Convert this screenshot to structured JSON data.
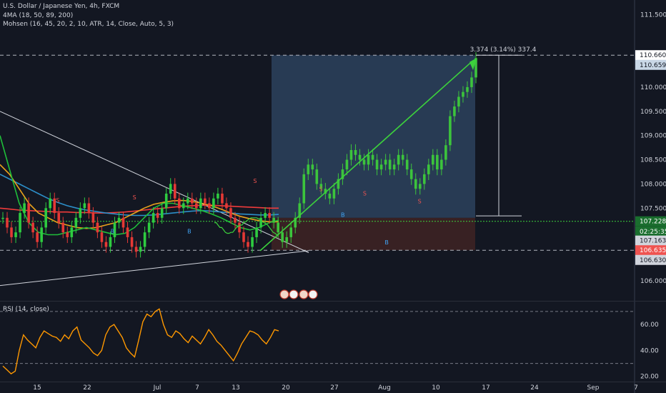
{
  "legend": {
    "title": "U.S. Dollar / Japanese Yen, 4h, FXCM",
    "ma": "4MA (18, 50, 89, 200)",
    "mohsen": "Mohsen (16, 45, 20, 2, 10, ATR, 14, Close, Auto, 5, 3)",
    "rsi": "RSI (14, close)"
  },
  "measure_label": "3.374 (3.14%) 337.4",
  "colors": {
    "bg": "#131722",
    "up": "#26a69a",
    "green": "#3cd23c",
    "red": "#ef5350",
    "rsi": "#ff9800",
    "target_zone": "#2b3f5a",
    "stop_zone": "#3a2224"
  },
  "chart_data": {
    "type": "candlestick",
    "price_axis": {
      "ticks": [
        "111.500",
        "110.660",
        "110.659",
        "110.000",
        "109.500",
        "109.000",
        "108.500",
        "108.000",
        "107.500",
        "107.228",
        "02:25:35",
        "107.163",
        "106.635",
        "106.630",
        "106.000"
      ],
      "ylim": [
        105.6,
        111.8
      ]
    },
    "x_ticks": [
      "15",
      "22",
      "Jul",
      "7",
      "13",
      "20",
      "27",
      "Aug",
      "10",
      "17",
      "24",
      "Sep",
      "7"
    ],
    "price_tags": [
      {
        "value": "110.660",
        "bg": "#ffffff",
        "fg": "#131722"
      },
      {
        "value": "110.659",
        "bg": "#c9d7e6",
        "fg": "#131722"
      },
      {
        "value": "107.228",
        "bg": "#1a6e2e",
        "fg": "#ffffff"
      },
      {
        "value": "02:25:35",
        "bg": "#1a6e2e",
        "fg": "#ffffff"
      },
      {
        "value": "107.163",
        "bg": "#d1d4dc",
        "fg": "#131722"
      },
      {
        "value": "106.635",
        "bg": "#ef5350",
        "fg": "#ffffff"
      },
      {
        "value": "106.630",
        "bg": "#d1d4dc",
        "fg": "#131722"
      }
    ],
    "rsi_axis": {
      "ticks": [
        "60.00",
        "40.00",
        "20.00"
      ],
      "ylim": [
        16,
        76
      ],
      "overbought": 70,
      "oversold": 30
    },
    "price_series": [
      107.3,
      107.1,
      106.9,
      107.0,
      107.4,
      107.6,
      107.2,
      107.0,
      106.8,
      107.1,
      107.5,
      107.7,
      107.4,
      107.2,
      107.0,
      106.9,
      107.1,
      107.3,
      107.5,
      107.6,
      107.4,
      107.2,
      107.0,
      106.8,
      106.7,
      106.9,
      107.2,
      107.3,
      107.1,
      106.9,
      106.7,
      106.6,
      106.7,
      107.0,
      107.2,
      107.4,
      107.3,
      107.5,
      107.8,
      108.0,
      107.7,
      107.5,
      107.6,
      107.7,
      107.6,
      107.5,
      107.7,
      107.6,
      107.5,
      107.7,
      107.8,
      107.6,
      107.5,
      107.3,
      107.2,
      107.0,
      106.8,
      106.7,
      106.9,
      107.1,
      107.3,
      107.4,
      107.3,
      107.2,
      107.0,
      106.8,
      106.9,
      107.1,
      107.3,
      107.6,
      108.2,
      108.4,
      108.3,
      108.0,
      107.9,
      107.8,
      107.7,
      107.9,
      108.1,
      108.3,
      108.5,
      108.7,
      108.6,
      108.5,
      108.4,
      108.6,
      108.5,
      108.3,
      108.4,
      108.5,
      108.3,
      108.4,
      108.6,
      108.5,
      108.3,
      108.1,
      107.9,
      108.0,
      108.2,
      108.4,
      108.6,
      108.3,
      108.5,
      108.8,
      109.4,
      109.6,
      109.8,
      109.9,
      110.0,
      110.2,
      110.6
    ],
    "stop_series": [
      107.2,
      107.2,
      107.15,
      107.1,
      107.1,
      107.05,
      107.0,
      106.98,
      106.98,
      107.0,
      107.0,
      107.05,
      107.1,
      107.12,
      107.15,
      107.15,
      107.2,
      107.22,
      107.25,
      107.28,
      107.3,
      107.3,
      107.3,
      107.3,
      107.28,
      107.26,
      107.22,
      107.2,
      107.18,
      107.15,
      107.1,
      107.05,
      107.0,
      106.98,
      106.95,
      106.95
    ],
    "ma_series": [
      {
        "color": "#ef3b3b",
        "values": [
          107.5,
          107.48,
          107.46,
          107.45,
          107.44,
          107.43,
          107.42,
          107.42,
          107.41,
          107.41,
          107.4,
          107.4,
          107.41,
          107.42,
          107.44,
          107.46,
          107.48,
          107.5,
          107.52,
          107.54,
          107.55,
          107.56,
          107.56,
          107.55,
          107.54,
          107.53,
          107.52,
          107.51,
          107.5,
          107.5
        ]
      },
      {
        "color": "#2c8fc9",
        "values": [
          108.2,
          108.1,
          108.0,
          107.9,
          107.8,
          107.7,
          107.62,
          107.55,
          107.5,
          107.46,
          107.43,
          107.4,
          107.38,
          107.36,
          107.35,
          107.35,
          107.36,
          107.38,
          107.4,
          107.42,
          107.44,
          107.45,
          107.44,
          107.42,
          107.4,
          107.38,
          107.37,
          107.36,
          107.36,
          107.37
        ]
      },
      {
        "color": "#e9a21c",
        "values": [
          108.4,
          108.2,
          107.9,
          107.6,
          107.4,
          107.3,
          107.2,
          107.15,
          107.1,
          107.08,
          107.1,
          107.15,
          107.2,
          107.3,
          107.4,
          107.5,
          107.58,
          107.62,
          107.65,
          107.66,
          107.64,
          107.6,
          107.55,
          107.48,
          107.4,
          107.33,
          107.28,
          107.24,
          107.22,
          107.22
        ]
      },
      {
        "color": "#1fbf3a",
        "values": [
          109.0,
          108.3,
          107.6,
          107.2,
          107.0,
          106.95,
          106.95,
          107.0,
          107.05,
          107.1,
          107.05,
          107.0,
          106.95,
          106.98,
          107.1,
          107.3,
          107.5,
          107.6,
          107.6,
          107.55,
          107.5,
          107.45,
          107.38,
          107.3,
          107.2,
          107.1,
          107.05,
          107.1,
          107.2,
          107.25
        ]
      }
    ],
    "markers": [
      {
        "text": "S",
        "i": 5,
        "price": 107.62
      },
      {
        "text": "B",
        "i": 10,
        "price": 106.98
      },
      {
        "text": "S",
        "i": 12,
        "price": 107.68
      },
      {
        "text": "B",
        "i": 17,
        "price": 106.98
      },
      {
        "text": "S",
        "i": 23,
        "price": 108.02
      },
      {
        "text": "S",
        "i": 29,
        "price": 107.85
      },
      {
        "text": "B",
        "i": 31,
        "price": 107.32
      },
      {
        "text": "S",
        "i": 33,
        "price": 107.76
      },
      {
        "text": "B",
        "i": 35,
        "price": 106.75
      },
      {
        "text": "S",
        "i": 38,
        "price": 107.6
      }
    ],
    "rsi": [
      28,
      25,
      22,
      24,
      40,
      52,
      48,
      45,
      42,
      50,
      55,
      53,
      51,
      50,
      47,
      52,
      49,
      55,
      58,
      48,
      45,
      42,
      38,
      36,
      40,
      52,
      58,
      60,
      55,
      50,
      42,
      38,
      35,
      48,
      62,
      68,
      66,
      70,
      72,
      60,
      52,
      50,
      55,
      53,
      49,
      46,
      51,
      48,
      45,
      50,
      56,
      52,
      47,
      44,
      40,
      36,
      32,
      38,
      45,
      50,
      55,
      54,
      52,
      48,
      45,
      50,
      56,
      55
    ],
    "levels": {
      "target": 110.66,
      "entry": 107.3,
      "stop": 106.63,
      "current": 107.228
    }
  }
}
